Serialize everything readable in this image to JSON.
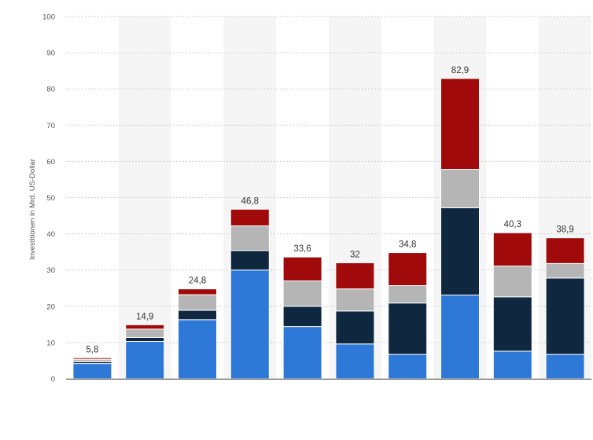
{
  "chart_data": {
    "type": "bar",
    "stacked": true,
    "title": "",
    "xlabel": "",
    "ylabel": "Investitionen in Mrd. US-Dollar",
    "ylim": [
      0,
      100
    ],
    "yticks": [
      "0",
      "10",
      "20",
      "30",
      "40",
      "50",
      "60",
      "70",
      "80",
      "90",
      "100"
    ],
    "grid": true,
    "legend": "none",
    "categories": [
      "",
      "",
      "",
      "",
      "",
      "",
      "",
      "",
      "",
      ""
    ],
    "totals": [
      "5,8",
      "14,9",
      "24,8",
      "46,8",
      "33,6",
      "32",
      "34,8",
      "82,9",
      "40,3",
      "38,9"
    ],
    "series": [
      {
        "color": "#2e78d8",
        "values": [
          4.2,
          10.3,
          16.3,
          30.0,
          14.4,
          9.6,
          6.7,
          23.1,
          7.6,
          6.7
        ]
      },
      {
        "color": "#0f2840",
        "values": [
          0.5,
          1.1,
          2.6,
          5.4,
          5.6,
          9.1,
          14.2,
          24.1,
          15.0,
          21.1
        ]
      },
      {
        "color": "#b5b5b5",
        "values": [
          0.7,
          2.3,
          4.3,
          6.8,
          7.0,
          6.1,
          4.8,
          10.6,
          8.5,
          4.0
        ]
      },
      {
        "color": "#a00a0a",
        "values": [
          0.4,
          1.2,
          1.6,
          4.6,
          6.6,
          7.2,
          9.1,
          25.1,
          9.2,
          7.1
        ]
      }
    ]
  }
}
